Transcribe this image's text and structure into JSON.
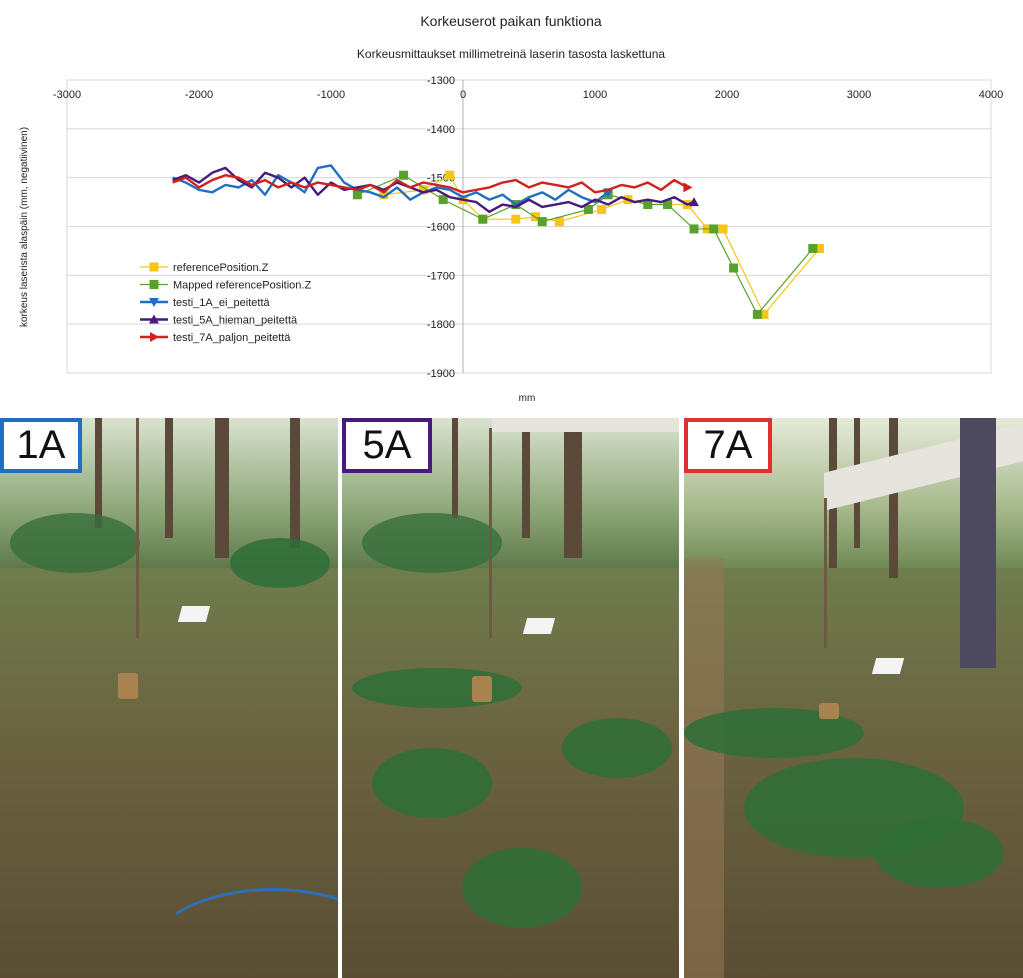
{
  "chart_data": {
    "type": "line",
    "title": "Korkeuserot paikan funktiona",
    "subtitle": "Korkeusmittaukset millimetreinä laserin tasosta laskettuna",
    "xlabel": "mm",
    "ylabel": "korkeus laserista alaspäin (mm, negatiivinen)",
    "xlim": [
      -3000,
      4000
    ],
    "ylim": [
      -1900,
      -1300
    ],
    "x_ticks": [
      -3000,
      -2000,
      -1000,
      0,
      1000,
      2000,
      3000,
      4000
    ],
    "y_ticks": [
      -1300,
      -1400,
      -1500,
      -1600,
      -1700,
      -1800,
      -1900
    ],
    "x_tick_labels": [
      "-3000",
      "-2000",
      "-1000",
      "0",
      "1000",
      "2000",
      "3000",
      "4000"
    ],
    "y_tick_labels": [
      "-1300",
      "-1400",
      "-1500",
      "-1600",
      "-1700",
      "-1800",
      "-1900"
    ],
    "grid": true,
    "legend_position": "bottom-left",
    "series": [
      {
        "name": "referencePosition.Z",
        "color": "#f5c518",
        "marker": "square",
        "x": [
          -600,
          -300,
          -100,
          0,
          150,
          400,
          550,
          730,
          1050,
          1250,
          1400,
          1550,
          1700,
          1850,
          1970,
          2280,
          2700
        ],
        "y": [
          -1535,
          -1525,
          -1495,
          -1545,
          -1585,
          -1585,
          -1580,
          -1590,
          -1565,
          -1545,
          -1555,
          -1555,
          -1555,
          -1605,
          -1605,
          -1780,
          -1645
        ]
      },
      {
        "name": "Mapped referencePosition.Z",
        "color": "#5aa02c",
        "marker": "square",
        "x": [
          -800,
          -450,
          -150,
          150,
          400,
          600,
          950,
          1100,
          1400,
          1550,
          1750,
          1900,
          2050,
          2230,
          2650
        ],
        "y": [
          -1535,
          -1495,
          -1545,
          -1585,
          -1555,
          -1590,
          -1565,
          -1535,
          -1555,
          -1555,
          -1605,
          -1605,
          -1685,
          -1780,
          -1645
        ]
      },
      {
        "name": "testi_1A_ei_peitettä",
        "color": "#1f6fc4",
        "marker": "triangle-down",
        "x": [
          -2200,
          -2100,
          -2000,
          -1900,
          -1800,
          -1700,
          -1600,
          -1500,
          -1400,
          -1300,
          -1200,
          -1100,
          -1000,
          -900,
          -800,
          -700,
          -600,
          -500,
          -400,
          -300,
          -200,
          -100,
          0,
          100,
          200,
          300,
          400,
          500,
          600,
          700,
          800,
          900,
          1000,
          1100
        ],
        "y": [
          -1500,
          -1510,
          -1525,
          -1530,
          -1515,
          -1520,
          -1505,
          -1535,
          -1495,
          -1510,
          -1530,
          -1480,
          -1475,
          -1510,
          -1525,
          -1530,
          -1540,
          -1520,
          -1545,
          -1530,
          -1520,
          -1525,
          -1540,
          -1530,
          -1545,
          -1535,
          -1555,
          -1540,
          -1530,
          -1545,
          -1525,
          -1540,
          -1550,
          -1530
        ]
      },
      {
        "name": "testi_5A_hieman_peitettä",
        "color": "#4a1a7a",
        "marker": "triangle-up",
        "x": [
          -2200,
          -2100,
          -2000,
          -1900,
          -1800,
          -1700,
          -1600,
          -1500,
          -1400,
          -1300,
          -1200,
          -1100,
          -1000,
          -900,
          -800,
          -700,
          -600,
          -500,
          -400,
          -300,
          -200,
          -100,
          0,
          100,
          200,
          300,
          400,
          500,
          600,
          700,
          800,
          900,
          1000,
          1100,
          1200,
          1300,
          1400,
          1500,
          1600,
          1700,
          1750
        ],
        "y": [
          -1505,
          -1495,
          -1510,
          -1490,
          -1480,
          -1505,
          -1520,
          -1490,
          -1500,
          -1520,
          -1500,
          -1535,
          -1510,
          -1525,
          -1520,
          -1515,
          -1525,
          -1510,
          -1520,
          -1530,
          -1525,
          -1540,
          -1545,
          -1550,
          -1570,
          -1555,
          -1560,
          -1545,
          -1560,
          -1555,
          -1550,
          -1560,
          -1545,
          -1555,
          -1540,
          -1550,
          -1545,
          -1550,
          -1540,
          -1555,
          -1550
        ]
      },
      {
        "name": "testi_7A_paljon_peitettä",
        "color": "#d0211c",
        "marker": "arrow",
        "x": [
          -2200,
          -2100,
          -2000,
          -1900,
          -1800,
          -1700,
          -1600,
          -1500,
          -1400,
          -1300,
          -1200,
          -1100,
          -1000,
          -900,
          -800,
          -700,
          -600,
          -500,
          -400,
          -300,
          -200,
          -100,
          0,
          100,
          200,
          300,
          400,
          500,
          600,
          700,
          800,
          900,
          1000,
          1100,
          1200,
          1300,
          1400,
          1500,
          1600,
          1700
        ],
        "y": [
          -1510,
          -1500,
          -1520,
          -1505,
          -1495,
          -1500,
          -1515,
          -1505,
          -1520,
          -1510,
          -1520,
          -1510,
          -1515,
          -1520,
          -1525,
          -1515,
          -1530,
          -1505,
          -1520,
          -1510,
          -1515,
          -1520,
          -1530,
          -1525,
          -1520,
          -1510,
          -1505,
          -1520,
          -1510,
          -1515,
          -1520,
          -1510,
          -1530,
          -1525,
          -1515,
          -1520,
          -1510,
          -1525,
          -1505,
          -1520
        ]
      }
    ]
  },
  "photos": [
    {
      "label": "1A",
      "border_color": "#1f6fc4"
    },
    {
      "label": "5A",
      "border_color": "#4a1a7a"
    },
    {
      "label": "7A",
      "border_color": "#e03030"
    }
  ]
}
